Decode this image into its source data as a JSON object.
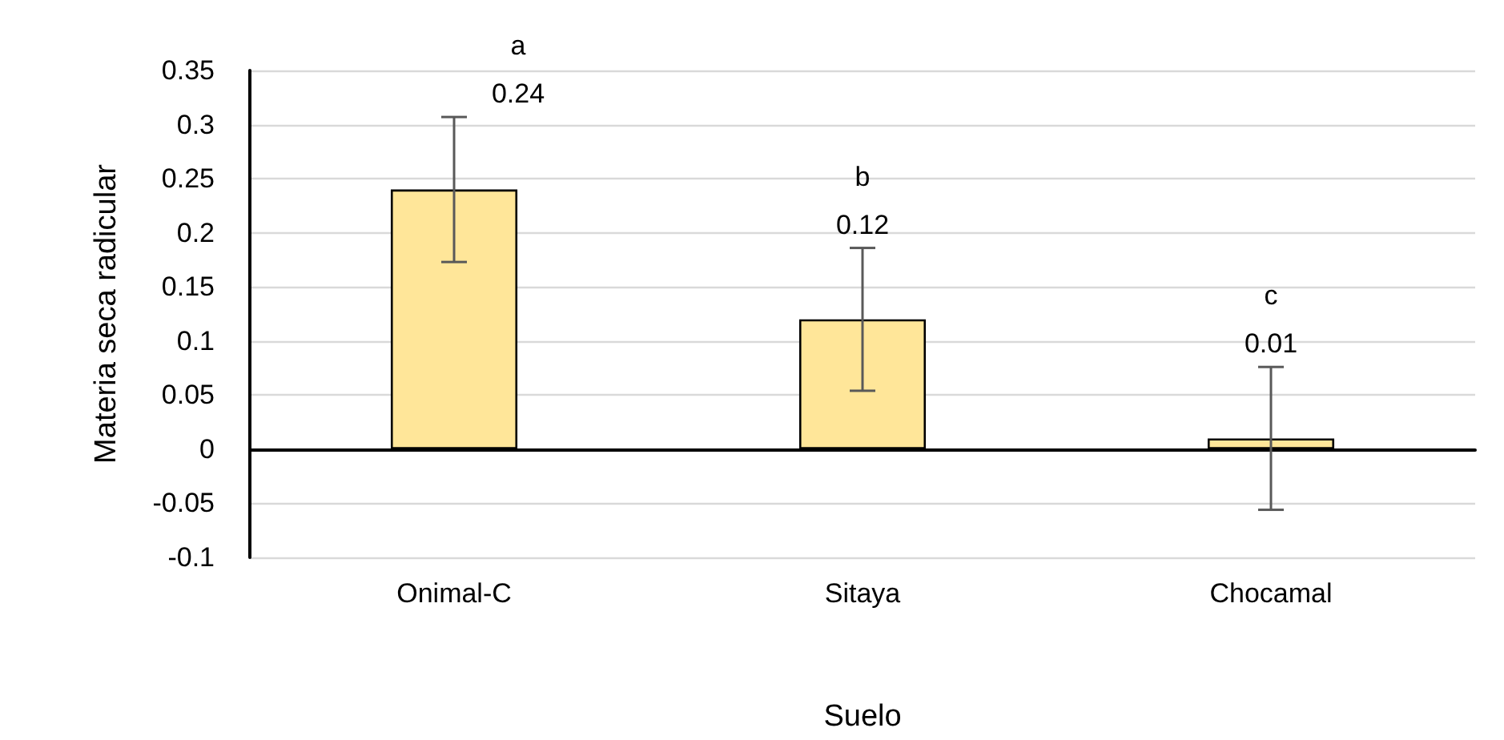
{
  "chart_data": {
    "type": "bar",
    "xlabel": "Suelo",
    "ylabel": "Materia seca radicular",
    "categories": [
      "Onimal-C",
      "Sitaya",
      "Chocamal"
    ],
    "values": [
      0.24,
      0.12,
      0.01
    ],
    "errors": [
      0.067,
      0.066,
      0.066
    ],
    "color": "#ffe699",
    "ylim": [
      -0.1,
      0.35
    ],
    "yticks": [
      -0.1,
      -0.05,
      0,
      0.05,
      0.1,
      0.15,
      0.2,
      0.25,
      0.3,
      0.35
    ],
    "grid": "y",
    "data_labels": true,
    "annotations": [
      "a",
      "b",
      "c"
    ]
  }
}
